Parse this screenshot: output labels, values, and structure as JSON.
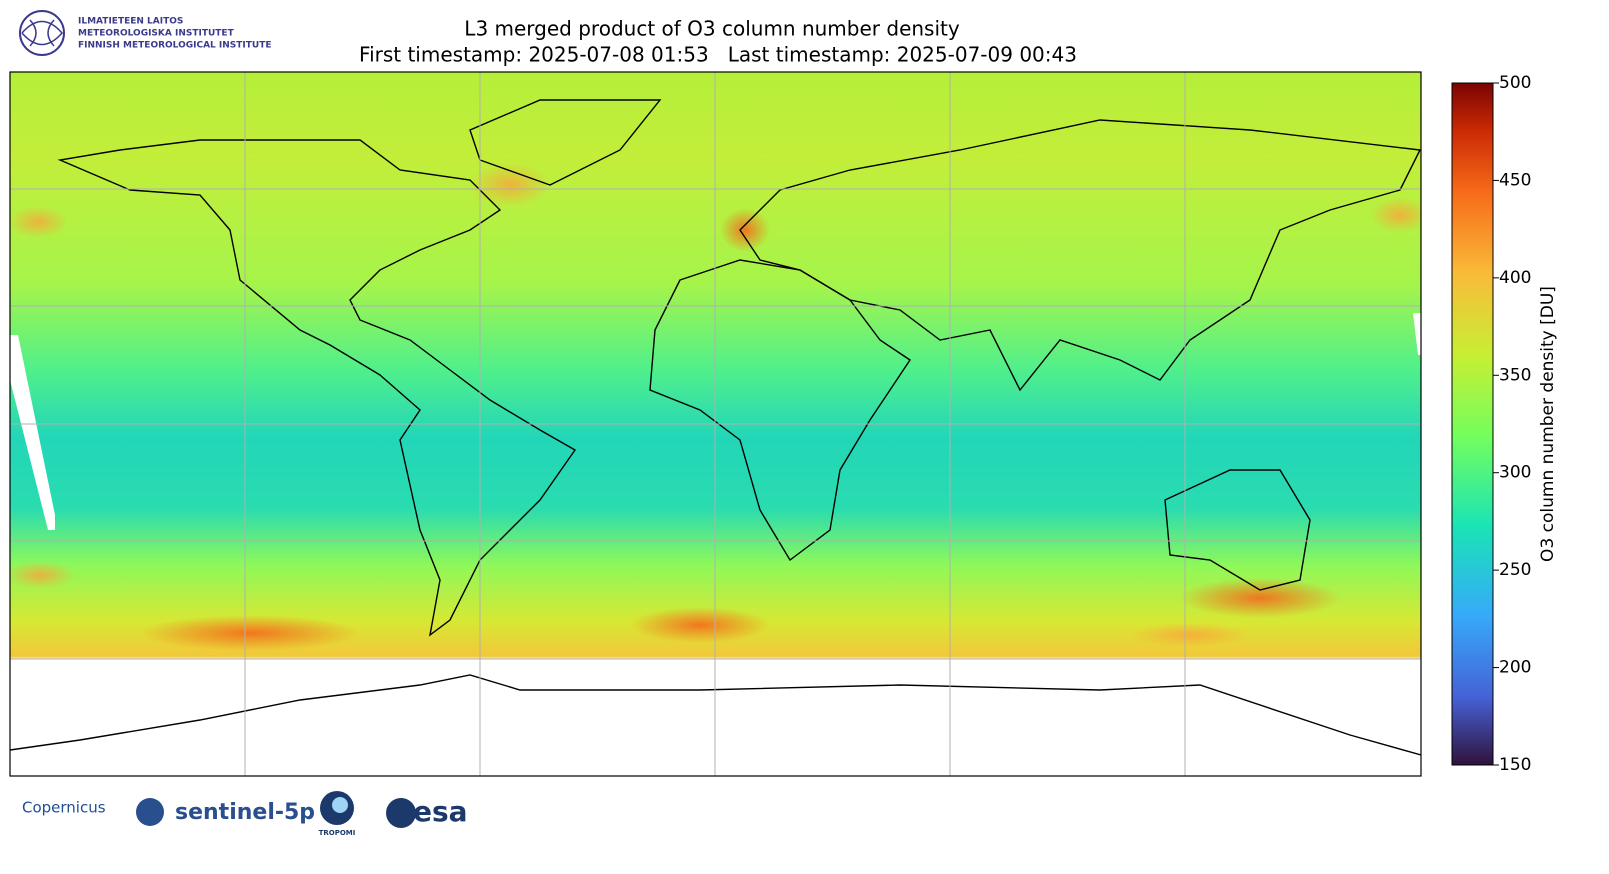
{
  "header": {
    "institute": [
      "ILMATIETEEN LAITOS",
      "METEOROLOGISKA INSTITUTET",
      "FINNISH METEOROLOGICAL INSTITUTE"
    ]
  },
  "title": "L3 merged product of O3 column number density",
  "subtitle": "First timestamp: 2025-07-08 01:53   Last timestamp: 2025-07-09 00:43",
  "colorbar": {
    "label": "O3 column number density [DU]",
    "lim": [
      150,
      500
    ],
    "ticks": [
      150,
      200,
      250,
      300,
      350,
      400,
      450,
      500
    ],
    "colormap": "turbo"
  },
  "logos": [
    "Copernicus",
    "sentinel-5p",
    "TROPOMI",
    "esa"
  ]
}
